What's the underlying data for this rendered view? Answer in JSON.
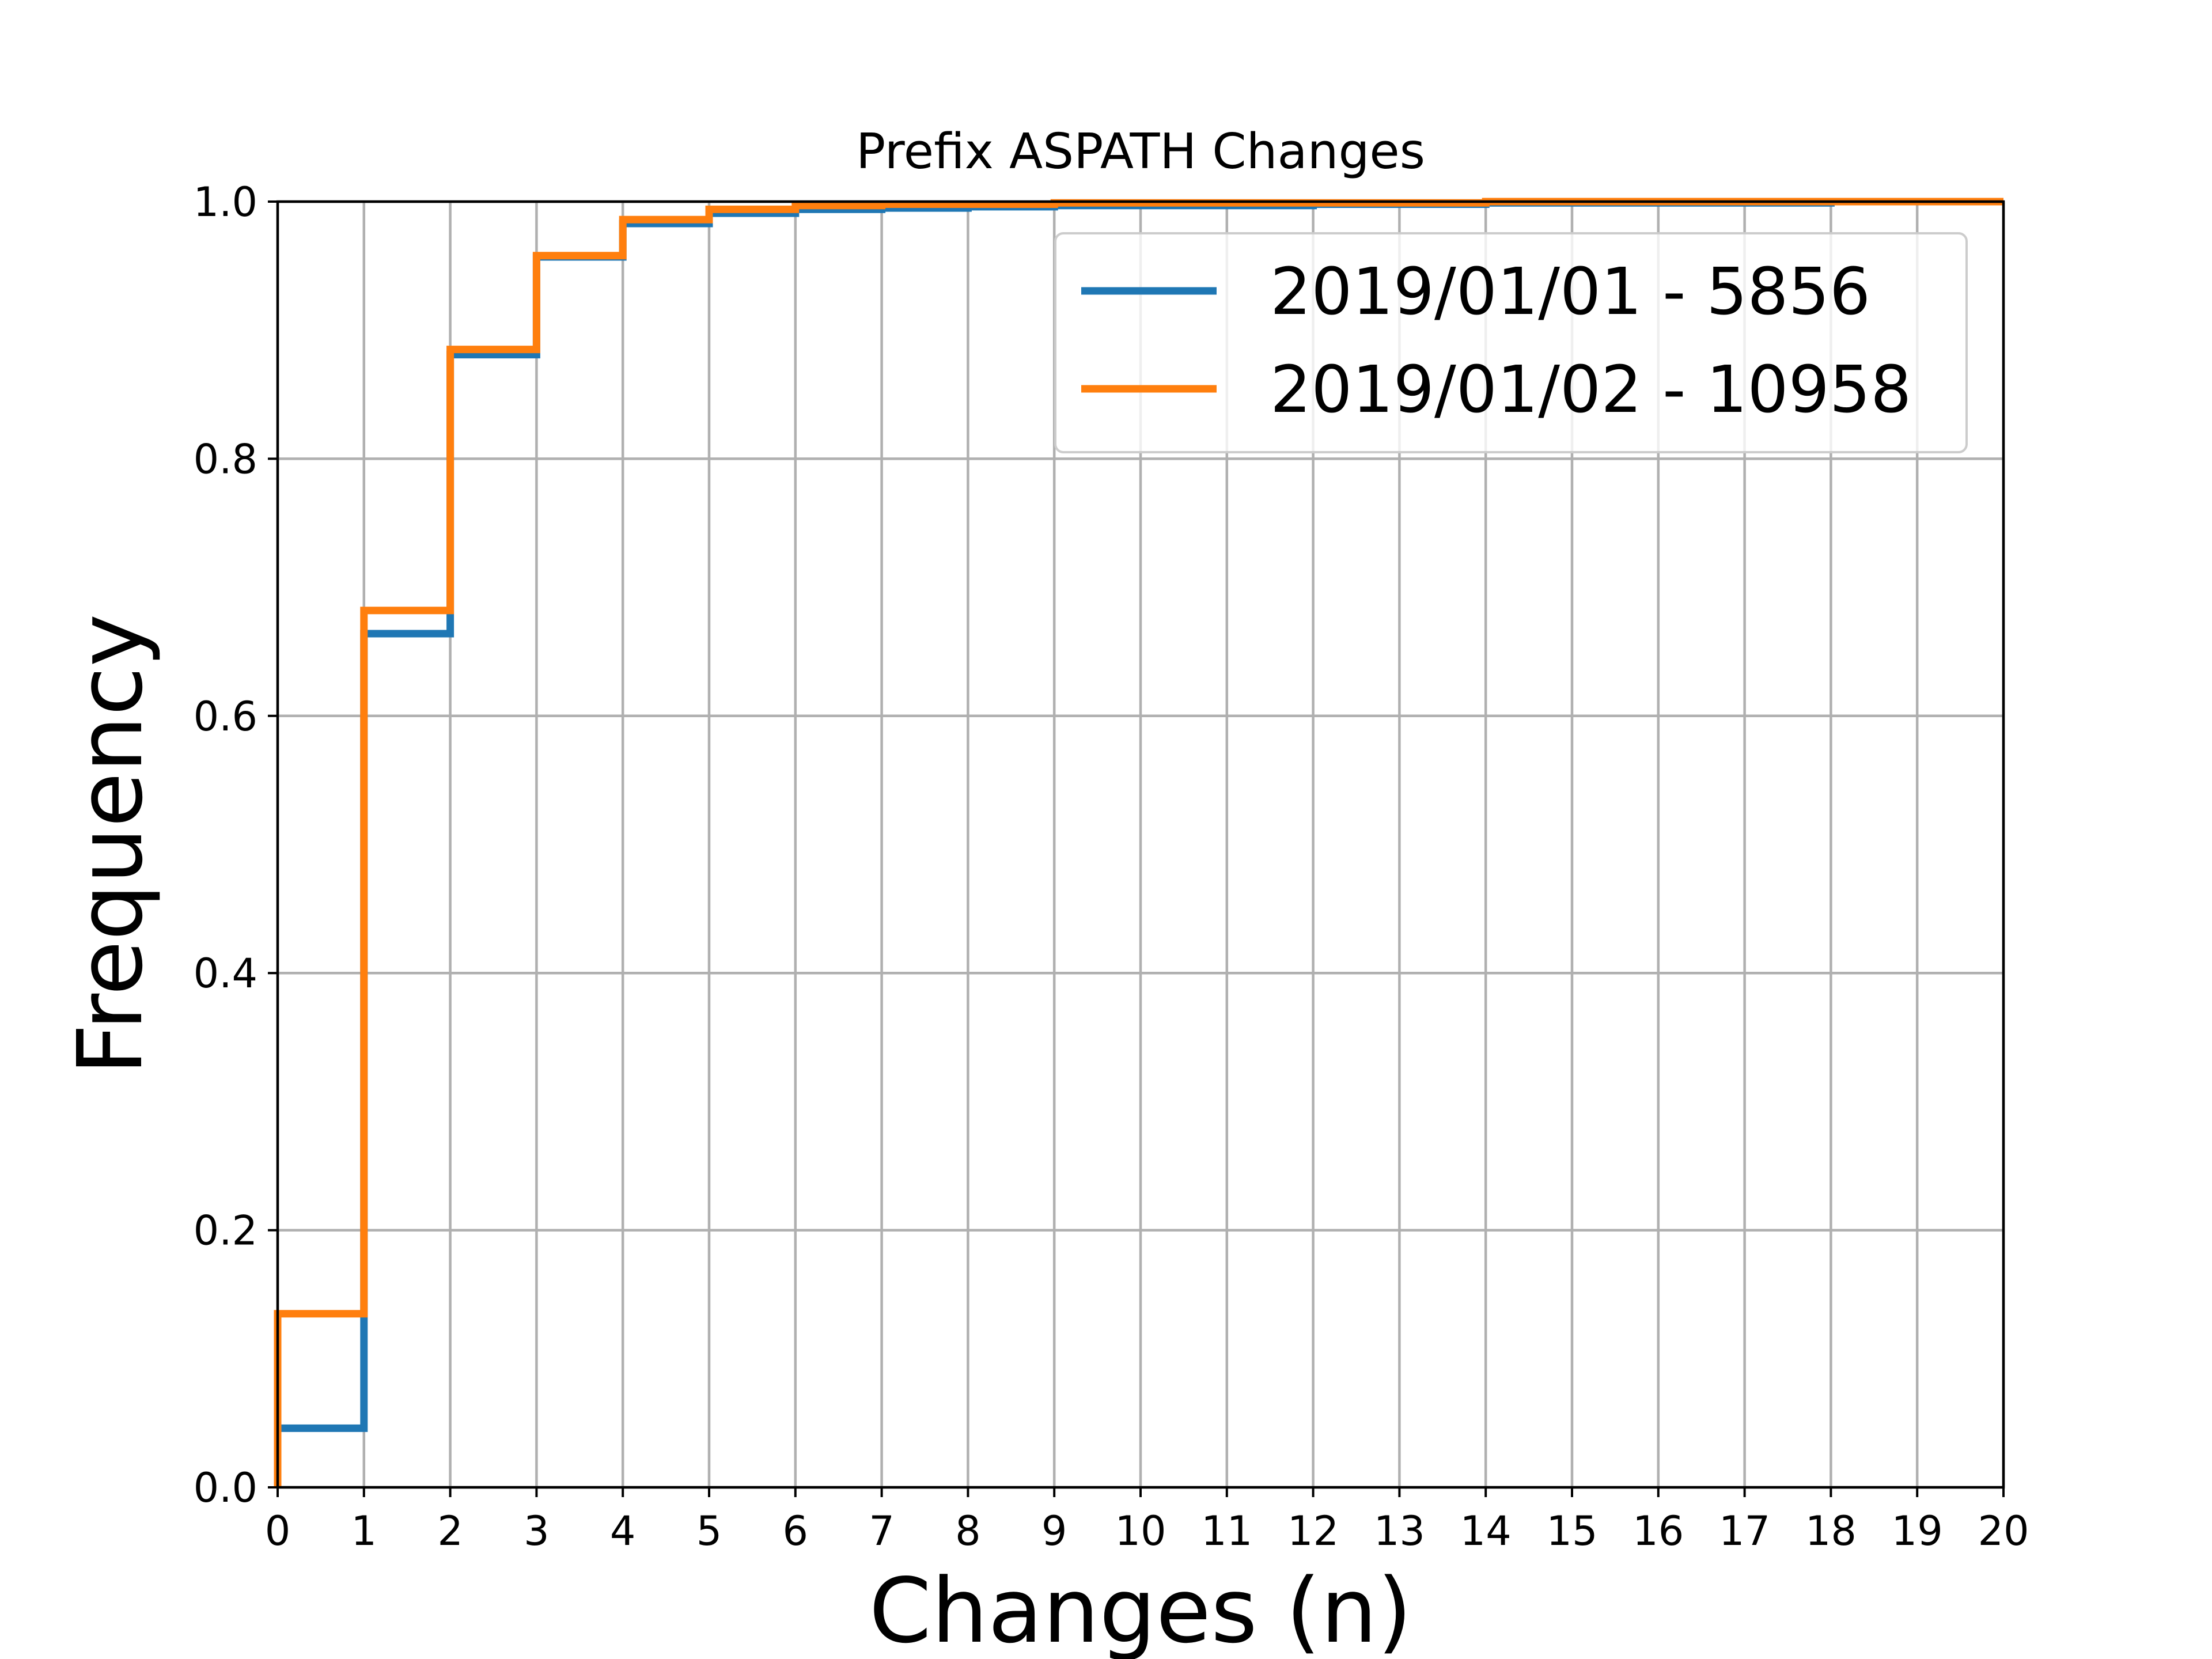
{
  "chart_data": {
    "type": "line",
    "step": "post",
    "title": "Prefix ASPATH Changes",
    "xlabel": "Changes (n)",
    "ylabel": "Frequency",
    "xlim": [
      0,
      20
    ],
    "ylim": [
      0,
      1.0
    ],
    "x_ticks": [
      "0",
      "1",
      "2",
      "3",
      "4",
      "5",
      "6",
      "7",
      "8",
      "9",
      "10",
      "11",
      "12",
      "13",
      "14",
      "15",
      "16",
      "17",
      "18",
      "19",
      "20"
    ],
    "y_ticks": [
      "0.0",
      "0.2",
      "0.4",
      "0.6",
      "0.8",
      "1.0"
    ],
    "grid": true,
    "legend_position": "top-right",
    "series": [
      {
        "name": "2019/01/01 - 5856",
        "color": "#1f77b4",
        "x": [
          0,
          1,
          2,
          3,
          4,
          5,
          6,
          7,
          8,
          9,
          10,
          12,
          14,
          16,
          18,
          20
        ],
        "y": [
          0.046,
          0.664,
          0.881,
          0.957,
          0.983,
          0.991,
          0.994,
          0.995,
          0.996,
          0.997,
          0.997,
          0.998,
          0.999,
          0.999,
          1.0,
          1.0
        ]
      },
      {
        "name": "2019/01/02 - 10958",
        "color": "#ff7f0e",
        "x": [
          0,
          1,
          2,
          3,
          4,
          5,
          6,
          7,
          8,
          9,
          10,
          12,
          14,
          16,
          18,
          20
        ],
        "y": [
          0.135,
          0.682,
          0.885,
          0.958,
          0.986,
          0.994,
          0.997,
          0.998,
          0.998,
          0.999,
          0.999,
          0.999,
          1.0,
          1.0,
          1.0,
          1.0
        ]
      }
    ]
  }
}
